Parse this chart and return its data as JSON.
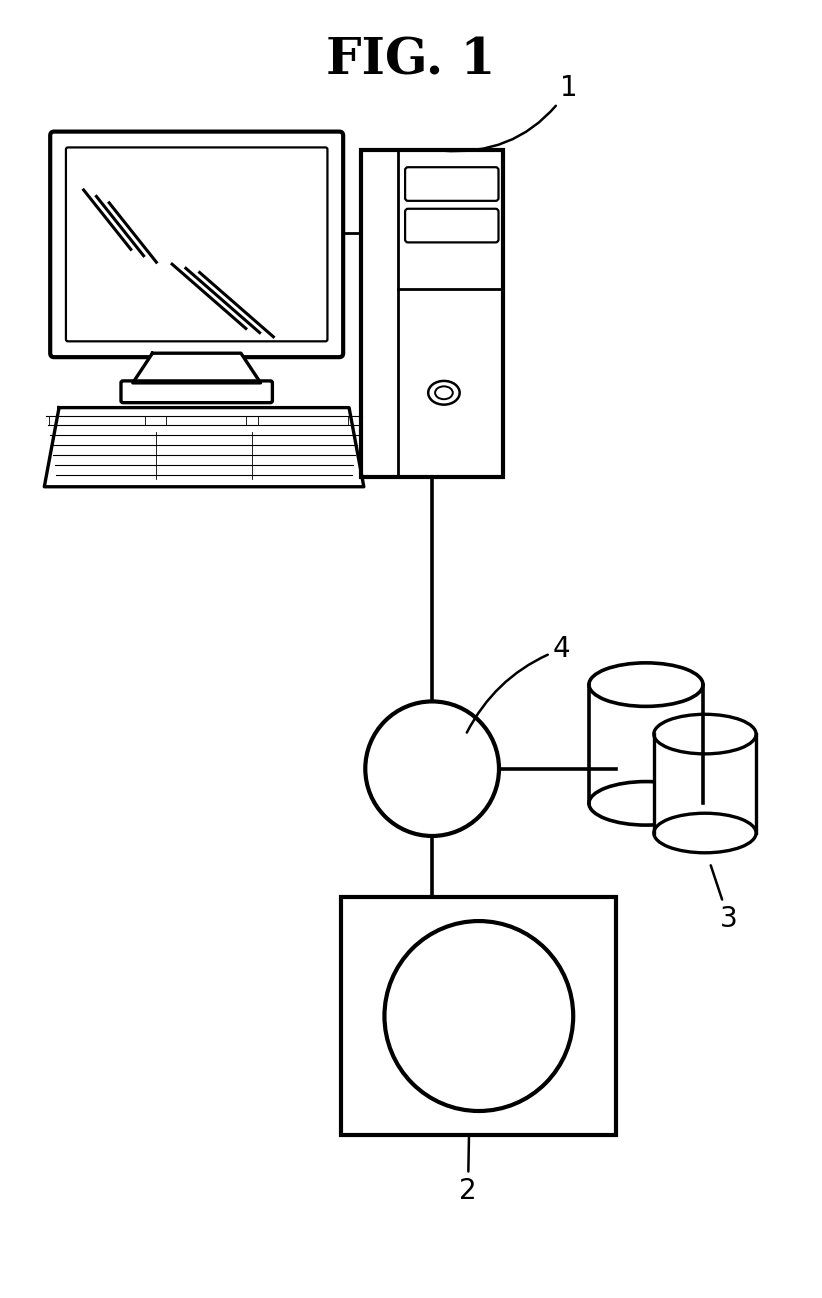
{
  "title": "FIG. 1",
  "title_fontsize": 36,
  "title_fontweight": "bold",
  "bg_color": "#ffffff",
  "line_color": "#000000",
  "line_width": 2.0,
  "label_fontsize": 20,
  "label_1": "1",
  "label_2": "2",
  "label_3": "3",
  "label_4": "4",
  "figsize": [
    8.22,
    12.98
  ],
  "dpi": 100
}
